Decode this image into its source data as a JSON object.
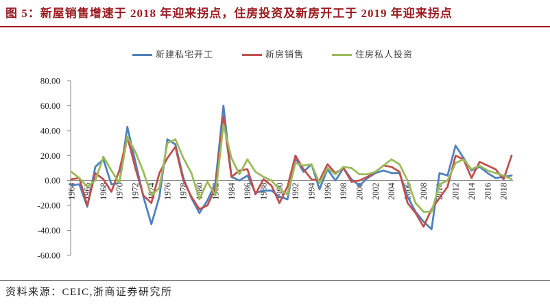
{
  "title": "图 5：新屋销售增速于 2018 年迎来拐点，住房投资及新房开工于 2019 年迎来拐点",
  "source": "资料来源：CEIC,浙商证券研究所",
  "colors": {
    "title": "#9b1b20",
    "title_rule": "#a4161c"
  },
  "chart_data": {
    "type": "line",
    "legend_position": "top",
    "grid": false,
    "ylim": [
      -60,
      80
    ],
    "y_ticks": [
      80,
      60,
      40,
      20,
      0,
      -20,
      -40,
      -60
    ],
    "y_tick_labels": [
      "80.00",
      "60.00",
      "40.00",
      "20.00",
      "0.00",
      "-20.00",
      "-40.00",
      "-60.00"
    ],
    "x": [
      1964,
      1965,
      1966,
      1967,
      1968,
      1969,
      1970,
      1971,
      1972,
      1973,
      1974,
      1975,
      1976,
      1977,
      1978,
      1979,
      1980,
      1981,
      1982,
      1983,
      1984,
      1985,
      1986,
      1987,
      1988,
      1989,
      1990,
      1991,
      1992,
      1993,
      1994,
      1995,
      1996,
      1997,
      1998,
      1999,
      2000,
      2001,
      2002,
      2003,
      2004,
      2005,
      2006,
      2007,
      2008,
      2009,
      2010,
      2011,
      2012,
      2013,
      2014,
      2015,
      2016,
      2017,
      2018,
      2019
    ],
    "x_tick_labels": [
      "1964",
      "1966",
      "1968",
      "1970",
      "1972",
      "1974",
      "1976",
      "1978",
      "1980",
      "1982",
      "1984",
      "1986",
      "1988",
      "1990",
      "1992",
      "1994",
      "1996",
      "1998",
      "2000",
      "2002",
      "2004",
      "2006",
      "2008",
      "2010",
      "2012",
      "2014",
      "2016",
      "2018"
    ],
    "series": [
      {
        "name": "新建私宅开工",
        "color": "#4f81bd",
        "values": [
          -4,
          -3,
          -21,
          11,
          17,
          -3,
          -2,
          43,
          15,
          -13,
          -35,
          -13,
          33,
          29,
          2,
          -14,
          -26,
          -16,
          -2,
          60,
          3,
          0,
          4,
          -10,
          -8,
          -8,
          -13,
          -15,
          18,
          7,
          13,
          -7,
          9,
          0,
          10,
          1,
          -4,
          2,
          6,
          8,
          6,
          6,
          -13,
          -25,
          -33,
          -39,
          6,
          4,
          28,
          18,
          8,
          11,
          6,
          2,
          3,
          4
        ]
      },
      {
        "name": "新房销售",
        "color": "#c0504d",
        "values": [
          1,
          2,
          -20,
          6,
          1,
          -9,
          8,
          35,
          10,
          -12,
          -18,
          6,
          18,
          27,
          0,
          -13,
          -23,
          -20,
          -6,
          51,
          3,
          8,
          9,
          -11,
          1,
          -4,
          -18,
          -5,
          20,
          9,
          1,
          0,
          13,
          6,
          10,
          -1,
          0,
          3,
          7,
          12,
          11,
          7,
          -18,
          -26,
          -37,
          -23,
          -14,
          -5,
          20,
          17,
          2,
          15,
          12,
          9,
          1,
          20
        ]
      },
      {
        "name": "住房私人投资",
        "color": "#9bbb59",
        "values": [
          7,
          2,
          -5,
          0,
          19,
          8,
          -2,
          35,
          23,
          7,
          -12,
          -6,
          30,
          33,
          18,
          6,
          -15,
          -1,
          -12,
          45,
          18,
          5,
          17,
          7,
          3,
          0,
          -7,
          -11,
          14,
          12,
          13,
          -2,
          10,
          5,
          11,
          10,
          5,
          5,
          7,
          12,
          17,
          13,
          0,
          -18,
          -25,
          -25,
          -3,
          0,
          14,
          17,
          9,
          12,
          8,
          6,
          4,
          1
        ]
      }
    ]
  }
}
